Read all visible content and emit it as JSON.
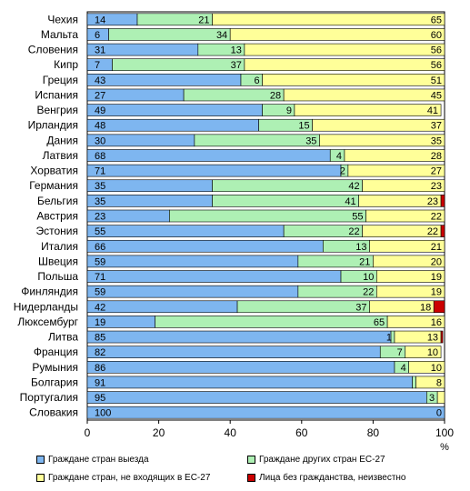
{
  "chart_data": {
    "type": "bar",
    "orientation": "horizontal",
    "stacked": true,
    "title": "",
    "xlabel": "",
    "xunit": "%",
    "xlim": [
      0,
      100
    ],
    "xticks": [
      "0",
      "20",
      "40",
      "60",
      "80",
      "100"
    ],
    "grid": false,
    "legend_position": "bottom",
    "categories": [
      "Чехия",
      "Мальта",
      "Словения",
      "Кипр",
      "Греция",
      "Испания",
      "Венгрия",
      "Ирландия",
      "Дания",
      "Латвия",
      "Хорватия",
      "Германия",
      "Бельгия",
      "Австрия",
      "Эстония",
      "Италия",
      "Швеция",
      "Польша",
      "Финляндия",
      "Нидерланды",
      "Люксембург",
      "Литва",
      "Франция",
      "Румыния",
      "Болгария",
      "Португалия",
      "Словакия"
    ],
    "series": [
      {
        "name": "Граждане стран выезда",
        "color": "#7eb6f0",
        "values": [
          14,
          6,
          31,
          7,
          43,
          27,
          49,
          48,
          30,
          68,
          71,
          35,
          35,
          23,
          55,
          66,
          59,
          71,
          59,
          42,
          19,
          85,
          82,
          86,
          91,
          95,
          100
        ],
        "labels": [
          "14",
          "6",
          "31",
          "7",
          "43",
          "27",
          "49",
          "48",
          "30",
          "68",
          "71",
          "35",
          "35",
          "23",
          "55",
          "66",
          "59",
          "71",
          "59",
          "42",
          "19",
          "85",
          "82",
          "86",
          "91",
          "95",
          "100"
        ]
      },
      {
        "name": "Граждане других стран ЕС-27",
        "color": "#aef0b4",
        "values": [
          21,
          34,
          13,
          37,
          6,
          28,
          9,
          15,
          35,
          4,
          2,
          42,
          41,
          55,
          22,
          13,
          21,
          10,
          22,
          37,
          65,
          1,
          7,
          4,
          1,
          3,
          0
        ],
        "labels": [
          "21",
          "34",
          "13",
          "37",
          "6",
          "28",
          "9",
          "15",
          "35",
          "4",
          "2",
          "42",
          "41",
          "55",
          "22",
          "13",
          "21",
          "10",
          "22",
          "37",
          "65",
          "1",
          "7",
          "4",
          "",
          "3",
          ""
        ]
      },
      {
        "name": "Граждане стран, не входящих в ЕС-27",
        "color": "#ffff99",
        "values": [
          65,
          60,
          56,
          56,
          51,
          45,
          41,
          37,
          35,
          28,
          27,
          23,
          23,
          22,
          22,
          21,
          20,
          19,
          19,
          18,
          16,
          13,
          10,
          10,
          8,
          2,
          0
        ],
        "labels": [
          "65",
          "60",
          "56",
          "56",
          "51",
          "45",
          "41",
          "37",
          "35",
          "28",
          "27",
          "23",
          "23",
          "22",
          "22",
          "21",
          "20",
          "19",
          "19",
          "18",
          "16",
          "13",
          "10",
          "10",
          "8",
          "",
          "0"
        ]
      },
      {
        "name": "Лица без гражданства, неизвестно",
        "color": "#cc0000",
        "values": [
          0,
          0,
          0,
          0,
          0,
          0,
          0,
          0,
          0,
          0,
          0,
          0,
          1,
          0,
          1,
          0,
          0,
          0,
          0,
          3,
          0,
          0.5,
          0,
          0,
          0,
          0,
          0
        ],
        "labels": []
      }
    ]
  }
}
